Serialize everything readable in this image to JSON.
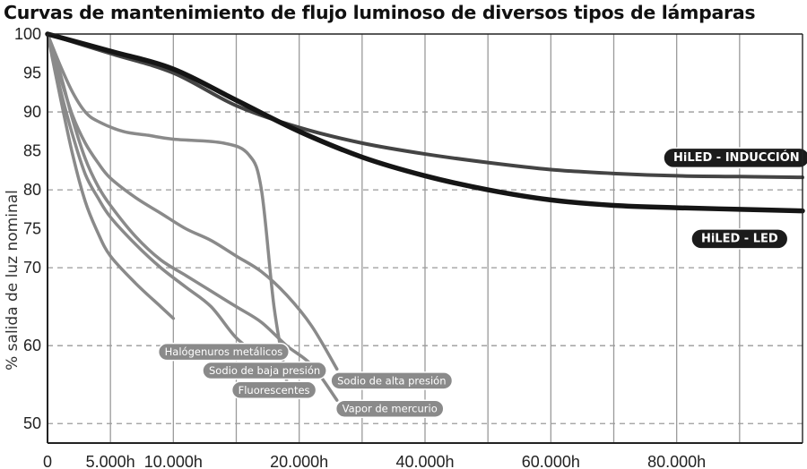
{
  "chart_data": {
    "type": "line",
    "title": "Curvas de mantenimiento de flujo luminoso de diversos tipos de lámparas",
    "ylabel": "% salida de luz nominal",
    "xlabel": "",
    "xlim": [
      0,
      120000
    ],
    "ylim": [
      47.5,
      100
    ],
    "x_ticks": [
      {
        "value": 0,
        "label": "0"
      },
      {
        "value": 10000,
        "label": "5.000h"
      },
      {
        "value": 20000,
        "label": "10.000h"
      },
      {
        "value": 40000,
        "label": "20.000h"
      },
      {
        "value": 60000,
        "label": "40.000h"
      },
      {
        "value": 80000,
        "label": "60.000h"
      },
      {
        "value": 100000,
        "label": "80.000h"
      }
    ],
    "x_grid": [
      10000,
      20000,
      30000,
      40000,
      50000,
      60000,
      70000,
      80000,
      90000,
      100000,
      110000
    ],
    "y_ticks": [
      50,
      60,
      70,
      75,
      80,
      85,
      90,
      95,
      100
    ],
    "y_grid_dashed": [
      50,
      60,
      70,
      80,
      90
    ],
    "series": [
      {
        "name": "HiLED - INDUCCIÓN",
        "color": "#444444",
        "width": 4,
        "label_style": "big",
        "points": [
          [
            0,
            100
          ],
          [
            10000,
            97.5
          ],
          [
            20000,
            95
          ],
          [
            30000,
            90.8
          ],
          [
            40000,
            88
          ],
          [
            50000,
            86
          ],
          [
            60000,
            84.6
          ],
          [
            70000,
            83.5
          ],
          [
            80000,
            82.6
          ],
          [
            90000,
            82.1
          ],
          [
            100000,
            81.8
          ],
          [
            110000,
            81.7
          ],
          [
            120000,
            81.6
          ]
        ]
      },
      {
        "name": "HiLED - LED",
        "color": "#151515",
        "width": 5.5,
        "label_style": "big",
        "points": [
          [
            0,
            100
          ],
          [
            10000,
            97.8
          ],
          [
            20000,
            95.5
          ],
          [
            30000,
            91.5
          ],
          [
            40000,
            87.5
          ],
          [
            50000,
            84.2
          ],
          [
            60000,
            81.8
          ],
          [
            70000,
            80
          ],
          [
            80000,
            78.7
          ],
          [
            90000,
            78
          ],
          [
            100000,
            77.7
          ],
          [
            110000,
            77.5
          ],
          [
            120000,
            77.3
          ]
        ]
      },
      {
        "name": "Halógenuros metálicos",
        "color": "#8a8a8a",
        "width": 3.5,
        "label_style": "pill",
        "points": [
          [
            0,
            100
          ],
          [
            2000,
            92
          ],
          [
            4000,
            84.5
          ],
          [
            6000,
            78.5
          ],
          [
            8000,
            74.5
          ],
          [
            10000,
            71.5
          ],
          [
            14000,
            68
          ],
          [
            18000,
            65
          ],
          [
            20000,
            63.5
          ]
        ]
      },
      {
        "name": "Sodio de baja presión",
        "color": "#8a8a8a",
        "width": 3.5,
        "label_style": "pill",
        "points": [
          [
            0,
            100
          ],
          [
            2000,
            93
          ],
          [
            4000,
            87
          ],
          [
            6000,
            82
          ],
          [
            8000,
            79
          ],
          [
            10000,
            76.5
          ],
          [
            14000,
            73
          ],
          [
            18000,
            70
          ],
          [
            22000,
            67.5
          ],
          [
            26000,
            65
          ],
          [
            30000,
            61
          ],
          [
            34000,
            58.5
          ]
        ]
      },
      {
        "name": "Fluorescentes",
        "color": "#8a8a8a",
        "width": 3.5,
        "label_style": "pill",
        "points": [
          [
            0,
            100
          ],
          [
            2000,
            96
          ],
          [
            4000,
            92.5
          ],
          [
            6000,
            90
          ],
          [
            8000,
            88.8
          ],
          [
            12000,
            87.5
          ],
          [
            16000,
            87
          ],
          [
            20000,
            86.5
          ],
          [
            28000,
            86
          ],
          [
            32000,
            84.5
          ],
          [
            34000,
            80
          ],
          [
            36000,
            65
          ],
          [
            38000,
            55.5
          ]
        ]
      },
      {
        "name": "Sodio de alta presión",
        "color": "#8a8a8a",
        "width": 3.5,
        "label_style": "pill",
        "points": [
          [
            0,
            100
          ],
          [
            2000,
            94.5
          ],
          [
            4000,
            89.5
          ],
          [
            6000,
            86
          ],
          [
            8000,
            83.5
          ],
          [
            10000,
            81.5
          ],
          [
            14000,
            79
          ],
          [
            18000,
            77
          ],
          [
            22000,
            75
          ],
          [
            26000,
            73.5
          ],
          [
            30000,
            71.5
          ],
          [
            34000,
            69.5
          ],
          [
            38000,
            66.5
          ],
          [
            42000,
            62.5
          ],
          [
            46000,
            57
          ]
        ]
      },
      {
        "name": "Vapor de mercurio",
        "color": "#8a8a8a",
        "width": 3.5,
        "label_style": "pill",
        "points": [
          [
            0,
            100
          ],
          [
            2000,
            95
          ],
          [
            4000,
            89
          ],
          [
            6000,
            84
          ],
          [
            8000,
            80.5
          ],
          [
            10000,
            78
          ],
          [
            14000,
            74
          ],
          [
            18000,
            71
          ],
          [
            22000,
            69
          ],
          [
            26000,
            67
          ],
          [
            30000,
            65
          ],
          [
            34000,
            63
          ],
          [
            38000,
            60
          ],
          [
            42000,
            57.5
          ],
          [
            46000,
            53
          ]
        ]
      }
    ],
    "labels": [
      {
        "series": "HiLED - INDUCCIÓN",
        "x": 109500,
        "y": 84.1
      },
      {
        "series": "HiLED - LED",
        "x": 110000,
        "y": 73.7
      },
      {
        "series": "Halógenuros metálicos",
        "x": 28000,
        "y": 59.2
      },
      {
        "series": "Sodio de baja presión",
        "x": 34500,
        "y": 56.8
      },
      {
        "series": "Fluorescentes",
        "x": 36000,
        "y": 54.3
      },
      {
        "series": "Sodio de alta presión",
        "x": 54700,
        "y": 55.5
      },
      {
        "series": "Vapor de mercurio",
        "x": 54400,
        "y": 51.9
      }
    ]
  }
}
